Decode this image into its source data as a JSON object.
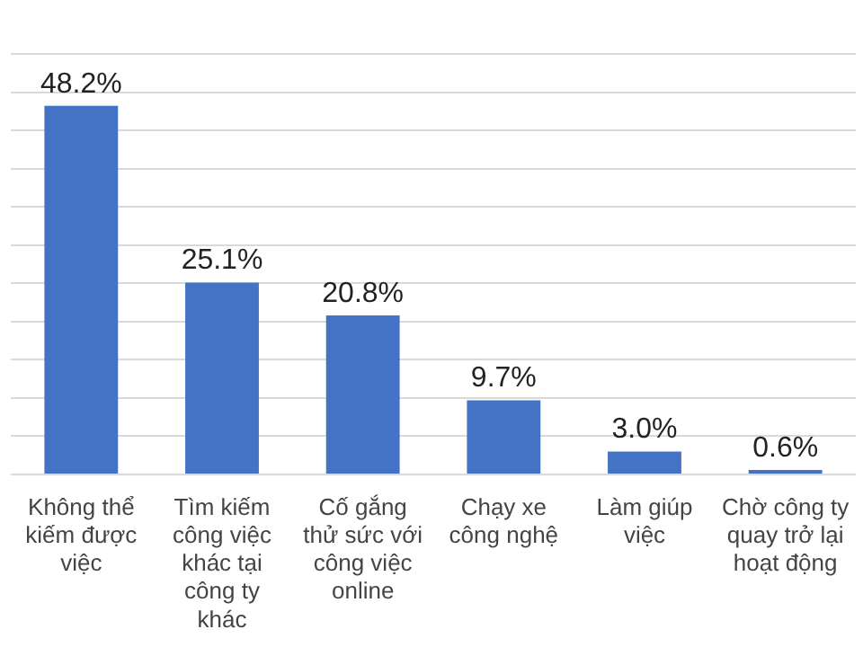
{
  "chart_data": {
    "type": "bar",
    "categories": [
      "Không thể kiếm được việc",
      "Tìm kiếm công việc khác tại công ty khác",
      "Cố gắng thử sức với công việc online",
      "Chạy xe công nghệ",
      "Làm giúp việc",
      "Chờ công ty quay trở lại hoạt động"
    ],
    "values": [
      48.2,
      25.1,
      20.8,
      9.7,
      3.0,
      0.6
    ],
    "color": "#4472c4",
    "data_labels": true,
    "value_labels": [
      "48.2%",
      "25.1%",
      "20.8%",
      "9.7%",
      "3.0%",
      "0.6%"
    ],
    "ylim": [
      0,
      55
    ],
    "yticks": [
      {
        "value": 0,
        "label": null
      },
      {
        "value": 5,
        "label": null
      },
      {
        "value": 10,
        "label": null
      },
      {
        "value": 15,
        "label": null
      },
      {
        "value": 20,
        "label": null
      },
      {
        "value": 25,
        "label": null
      },
      {
        "value": 30,
        "label": null
      },
      {
        "value": 35,
        "label": null
      },
      {
        "value": 40,
        "label": null
      },
      {
        "value": 45,
        "label": null
      },
      {
        "value": 50,
        "label": null
      },
      {
        "value": 55,
        "label": null
      }
    ],
    "grid": "y",
    "tick_labels": "x"
  }
}
